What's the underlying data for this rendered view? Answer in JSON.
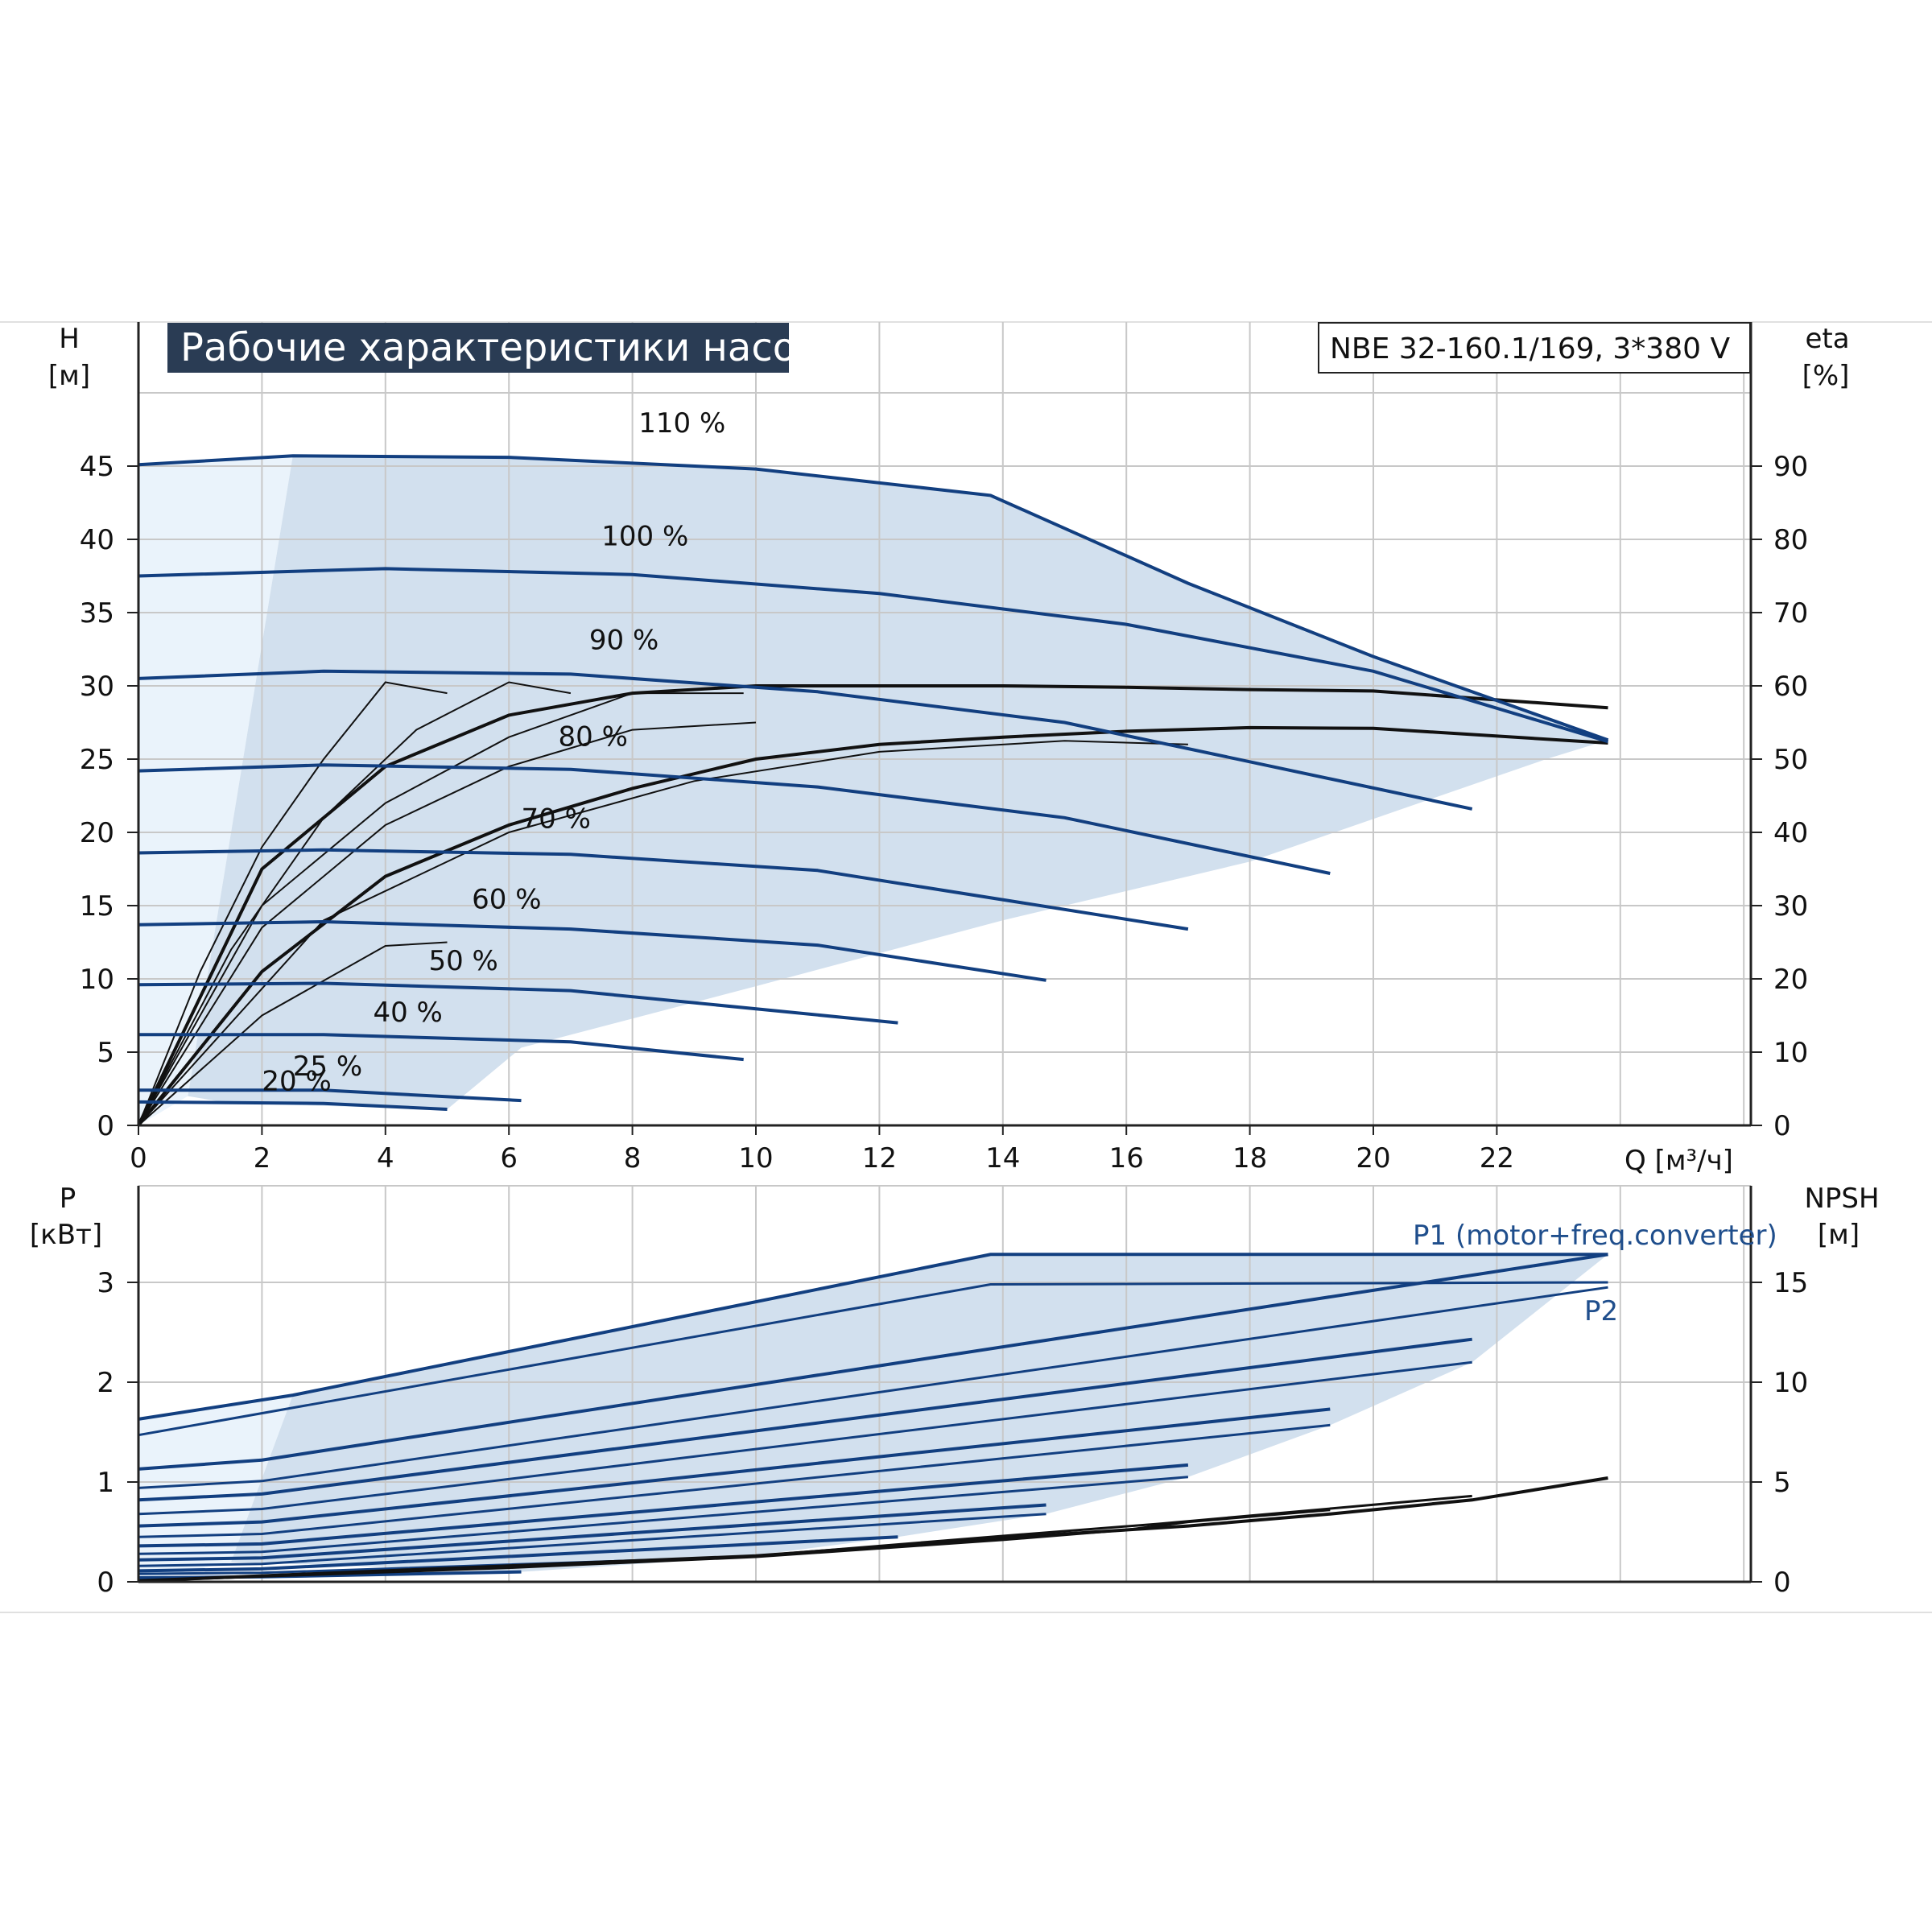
{
  "title": "Рабочие характеристики насоса",
  "model": "NBE 32-160.1/169, 3*380 V",
  "colors": {
    "curve": "#123f80",
    "envelope": "#d2e0ee",
    "lowzone": "#eaf3fb",
    "black": "#111111",
    "grid": "#c8c8c8",
    "title_bg": "#2a3c54"
  },
  "chart_data": [
    {
      "type": "line",
      "name": "head",
      "ylabel": "H",
      "yunit": "[м]",
      "y2label": "eta",
      "y2unit": "[%]",
      "xlabel": "Q [м³/ч]",
      "xlim": [
        0,
        26
      ],
      "ylim": [
        0,
        50
      ],
      "x_ticks": [
        "0",
        "2",
        "4",
        "6",
        "8",
        "10",
        "12",
        "14",
        "16",
        "18",
        "20",
        "22"
      ],
      "y_ticks": [
        "0",
        "5",
        "10",
        "15",
        "20",
        "25",
        "30",
        "35",
        "40",
        "45"
      ],
      "y2_ticks": [
        "0",
        "10",
        "20",
        "30",
        "40",
        "50",
        "60",
        "70",
        "80",
        "90"
      ],
      "grid": true,
      "series": [
        {
          "name": "110 %",
          "points": [
            [
              0,
              45.1
            ],
            [
              2.5,
              45.7
            ],
            [
              6,
              45.6
            ],
            [
              10,
              44.8
            ],
            [
              13.8,
              43
            ],
            [
              17,
              37
            ],
            [
              20,
              32
            ],
            [
              23.8,
              26.3
            ]
          ]
        },
        {
          "name": "100 %",
          "points": [
            [
              0,
              37.5
            ],
            [
              4,
              38
            ],
            [
              8,
              37.6
            ],
            [
              12,
              36.3
            ],
            [
              16,
              34.2
            ],
            [
              20,
              31
            ],
            [
              23.8,
              26.2
            ]
          ]
        },
        {
          "name": "90 %",
          "points": [
            [
              0,
              30.5
            ],
            [
              3,
              31
            ],
            [
              7,
              30.8
            ],
            [
              11,
              29.6
            ],
            [
              15,
              27.5
            ],
            [
              21.6,
              21.6
            ]
          ]
        },
        {
          "name": "80 %",
          "points": [
            [
              0,
              24.2
            ],
            [
              3,
              24.6
            ],
            [
              7,
              24.3
            ],
            [
              11,
              23.1
            ],
            [
              15,
              21
            ],
            [
              19.3,
              17.2
            ]
          ]
        },
        {
          "name": "70 %",
          "points": [
            [
              0,
              18.6
            ],
            [
              3,
              18.8
            ],
            [
              7,
              18.5
            ],
            [
              11,
              17.4
            ],
            [
              17,
              13.4
            ]
          ]
        },
        {
          "name": "60 %",
          "points": [
            [
              0,
              13.7
            ],
            [
              3,
              13.9
            ],
            [
              7,
              13.4
            ],
            [
              11,
              12.3
            ],
            [
              14.7,
              9.9
            ]
          ]
        },
        {
          "name": "50 %",
          "points": [
            [
              0,
              9.6
            ],
            [
              3,
              9.7
            ],
            [
              7,
              9.2
            ],
            [
              12.3,
              7
            ]
          ]
        },
        {
          "name": "40 %",
          "points": [
            [
              0,
              6.2
            ],
            [
              3,
              6.2
            ],
            [
              7,
              5.7
            ],
            [
              9.8,
              4.5
            ]
          ]
        },
        {
          "name": "25 %",
          "points": [
            [
              0,
              2.4
            ],
            [
              3,
              2.4
            ],
            [
              6.2,
              1.7
            ]
          ]
        },
        {
          "name": "20 %",
          "points": [
            [
              0,
              1.6
            ],
            [
              3,
              1.5
            ],
            [
              5,
              1.1
            ]
          ]
        }
      ],
      "eta_curves": [
        {
          "points": [
            [
              0,
              0
            ],
            [
              2,
              35
            ],
            [
              4,
              49
            ],
            [
              6,
              56
            ],
            [
              8,
              59
            ],
            [
              10,
              60
            ],
            [
              12,
              60
            ],
            [
              14,
              60
            ],
            [
              16,
              59.8
            ],
            [
              18,
              59.5
            ],
            [
              20,
              59.3
            ],
            [
              23.8,
              57
            ]
          ]
        },
        {
          "points": [
            [
              0,
              0
            ],
            [
              2,
              21
            ],
            [
              4,
              34
            ],
            [
              6,
              41
            ],
            [
              8,
              46
            ],
            [
              10,
              50
            ],
            [
              12,
              52
            ],
            [
              14,
              53
            ],
            [
              16,
              53.8
            ],
            [
              18,
              54.3
            ],
            [
              20,
              54.2
            ],
            [
              23.8,
              52.2
            ]
          ]
        },
        {
          "points": [
            [
              0,
              0
            ],
            [
              1,
              21
            ],
            [
              2,
              38
            ],
            [
              3,
              50
            ],
            [
              4,
              60.5
            ],
            [
              5,
              59
            ]
          ]
        },
        {
          "points": [
            [
              0,
              0
            ],
            [
              1.5,
              24
            ],
            [
              3,
              42
            ],
            [
              4.5,
              54
            ],
            [
              6,
              60.5
            ],
            [
              7,
              59
            ]
          ]
        },
        {
          "points": [
            [
              0,
              0
            ],
            [
              2,
              30
            ],
            [
              4,
              44
            ],
            [
              6,
              53
            ],
            [
              8,
              59
            ],
            [
              9.8,
              59
            ]
          ]
        },
        {
          "points": [
            [
              0,
              0
            ],
            [
              2,
              27
            ],
            [
              4,
              41
            ],
            [
              6,
              49
            ],
            [
              8,
              54
            ],
            [
              10,
              55
            ]
          ]
        },
        {
          "points": [
            [
              0,
              0
            ],
            [
              3,
              28
            ],
            [
              6,
              40
            ],
            [
              9,
              47
            ],
            [
              12,
              51
            ],
            [
              15,
              52.5
            ],
            [
              17,
              52
            ]
          ]
        },
        {
          "points": [
            [
              0,
              0
            ],
            [
              2,
              15
            ],
            [
              4,
              24.5
            ],
            [
              5,
              25
            ]
          ]
        }
      ],
      "labels": [
        "110 %",
        "100 %",
        "90 %",
        "80 %",
        "70 %",
        "60 %",
        "50 %",
        "40 %",
        "25 %",
        "20 %"
      ]
    },
    {
      "type": "line",
      "name": "power",
      "ylabel": "P",
      "yunit": "[кВт]",
      "y2label": "NPSH",
      "y2unit": "[м]",
      "xlim": [
        0,
        26
      ],
      "ylim": [
        0,
        3.5
      ],
      "y_ticks": [
        "0",
        "1",
        "2",
        "3"
      ],
      "y2_ticks": [
        "0",
        "5",
        "10",
        "15"
      ],
      "grid": true,
      "series": [
        {
          "name": "P1 (motor+freq.converter)",
          "points": [
            [
              0,
              1.63
            ],
            [
              2.5,
              1.87
            ],
            [
              13.8,
              3.28
            ],
            [
              23.8,
              3.28
            ]
          ]
        },
        {
          "name": "P2",
          "points": [
            [
              0,
              1.47
            ],
            [
              13.8,
              2.98
            ],
            [
              23.8,
              3.0
            ]
          ]
        },
        {
          "name": "",
          "points": [
            [
              0,
              1.13
            ],
            [
              2,
              1.22
            ],
            [
              23.8,
              3.28
            ]
          ]
        },
        {
          "name": "",
          "points": [
            [
              0,
              0.94
            ],
            [
              2,
              1.01
            ],
            [
              23.8,
              2.95
            ]
          ]
        },
        {
          "name": "",
          "points": [
            [
              0,
              0.82
            ],
            [
              2,
              0.88
            ],
            [
              21.6,
              2.43
            ]
          ]
        },
        {
          "name": "",
          "points": [
            [
              0,
              0.68
            ],
            [
              2,
              0.73
            ],
            [
              21.6,
              2.2
            ]
          ]
        },
        {
          "name": "",
          "points": [
            [
              0,
              0.56
            ],
            [
              2,
              0.6
            ],
            [
              19.3,
              1.73
            ]
          ]
        },
        {
          "name": "",
          "points": [
            [
              0,
              0.45
            ],
            [
              2,
              0.48
            ],
            [
              19.3,
              1.57
            ]
          ]
        },
        {
          "name": "",
          "points": [
            [
              0,
              0.36
            ],
            [
              2,
              0.38
            ],
            [
              17,
              1.17
            ]
          ]
        },
        {
          "name": "",
          "points": [
            [
              0,
              0.28
            ],
            [
              2,
              0.3
            ],
            [
              17,
              1.05
            ]
          ]
        },
        {
          "name": "",
          "points": [
            [
              0,
              0.22
            ],
            [
              2,
              0.24
            ],
            [
              14.7,
              0.77
            ]
          ]
        },
        {
          "name": "",
          "points": [
            [
              0,
              0.16
            ],
            [
              2,
              0.18
            ],
            [
              14.7,
              0.68
            ]
          ]
        },
        {
          "name": "",
          "points": [
            [
              0,
              0.11
            ],
            [
              2,
              0.13
            ],
            [
              12.3,
              0.45
            ]
          ]
        },
        {
          "name": "",
          "points": [
            [
              0,
              0.08
            ],
            [
              2,
              0.09
            ],
            [
              9.8,
              0.25
            ]
          ]
        },
        {
          "name": "",
          "points": [
            [
              0,
              0.04
            ],
            [
              2,
              0.05
            ],
            [
              6.2,
              0.1
            ]
          ]
        }
      ],
      "npsh_curves": [
        {
          "points": [
            [
              0,
              0.05
            ],
            [
              6,
              0.8
            ],
            [
              10,
              1.3
            ],
            [
              14,
              2.2
            ],
            [
              17,
              2.8
            ],
            [
              19.3,
              3.4
            ],
            [
              21.6,
              4.1
            ],
            [
              23.8,
              5.2
            ]
          ]
        },
        {
          "points": [
            [
              0,
              0.05
            ],
            [
              6,
              0.7
            ],
            [
              10,
              1.25
            ],
            [
              14,
              2.1
            ],
            [
              16,
              2.6
            ],
            [
              17,
              3.0
            ],
            [
              19.3,
              3.6
            ]
          ]
        },
        {
          "points": [
            [
              0,
              0.05
            ],
            [
              6,
              0.75
            ],
            [
              10,
              1.3
            ],
            [
              14,
              2.3
            ],
            [
              16.5,
              2.9
            ],
            [
              21.6,
              4.3
            ]
          ]
        }
      ]
    }
  ]
}
